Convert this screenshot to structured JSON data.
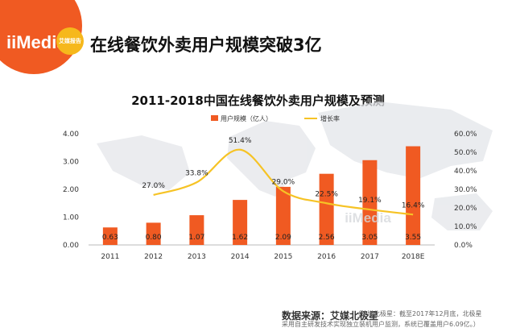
{
  "header": {
    "logo_text": "iiMedia",
    "logo_badge": "艾媒报告",
    "title": "在线餐饮外卖用户规模突破3亿"
  },
  "footer": {
    "source": "数据来源：艾媒北极星",
    "note_line1": "（艾媒北极星：截至2017年12月底，北极星",
    "note_line2": "采用自主研发技术实现独立装机用户监测，系统已覆盖用户6.09亿。）"
  },
  "watermark": "iiMedia",
  "colors": {
    "bar": "#f05a22",
    "line": "#f6c325",
    "logo": "#f05a22",
    "badge": "#f6b81b",
    "map": "#e4e6ea"
  },
  "chart_data": {
    "type": "bar",
    "title": "2011-2018中国在线餐饮外卖用户规模及预测",
    "categories": [
      "2011",
      "2012",
      "2013",
      "2014",
      "2015",
      "2016",
      "2017",
      "2018E"
    ],
    "series": [
      {
        "name": "用户规模（亿人）",
        "type": "bar",
        "axis": "left",
        "values": [
          0.63,
          0.8,
          1.07,
          1.62,
          2.09,
          2.56,
          3.05,
          3.55
        ],
        "labels": [
          "0.63",
          "0.80",
          "1.07",
          "1.62",
          "2.09",
          "2.56",
          "3.05",
          "3.55"
        ]
      },
      {
        "name": "增长率",
        "type": "line",
        "axis": "right",
        "values": [
          null,
          27.0,
          33.8,
          51.4,
          29.0,
          22.5,
          19.1,
          16.4
        ],
        "labels": [
          "",
          "27.0%",
          "33.8%",
          "51.4%",
          "29.0%",
          "22.5%",
          "19.1%",
          "16.4%"
        ]
      }
    ],
    "y_left": {
      "range": [
        0,
        4
      ],
      "ticks": [
        "0.00",
        "1.00",
        "2.00",
        "3.00",
        "4.00"
      ]
    },
    "y_right": {
      "range": [
        0,
        60
      ],
      "ticks": [
        "0.0%",
        "10.0%",
        "20.0%",
        "30.0%",
        "40.0%",
        "50.0%",
        "60.0%"
      ]
    },
    "legend": "top-center",
    "grid": false
  }
}
